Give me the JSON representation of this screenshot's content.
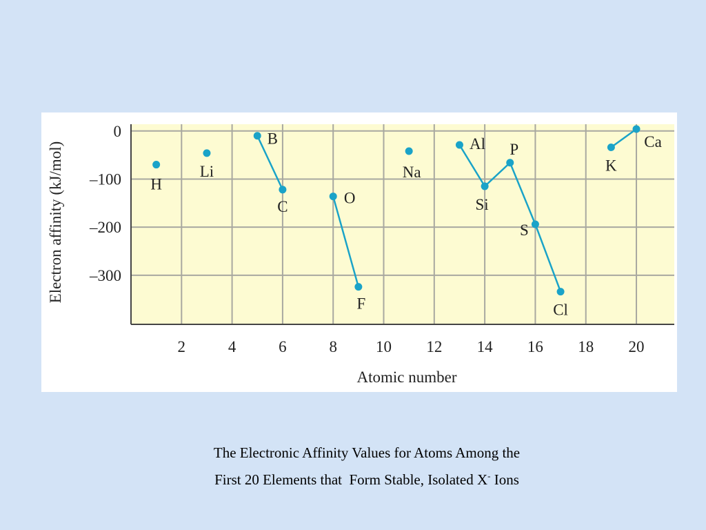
{
  "chart_data": {
    "type": "line",
    "x": [
      1,
      2,
      3,
      4,
      5,
      6,
      7,
      8,
      9,
      10,
      11,
      12,
      13,
      14,
      15,
      16,
      17,
      18,
      19,
      20
    ],
    "series": [
      {
        "color": "#1aa3c8",
        "values": [
          -70,
          null,
          -46,
          null,
          -10,
          -122,
          null,
          -136,
          -324,
          null,
          -42,
          null,
          -29,
          -115,
          -66,
          -194,
          -334,
          null,
          -34,
          4
        ],
        "point_labels": [
          "H",
          null,
          "Li",
          null,
          "B",
          "C",
          null,
          "O",
          "F",
          null,
          "Na",
          null,
          "Al",
          "Si",
          "P",
          "S",
          "Cl",
          null,
          "K",
          "Ca"
        ]
      }
    ],
    "xlabel": "Atomic number",
    "ylabel": "Electron affinity (kJ/mol)",
    "xlim": [
      0,
      21.5
    ],
    "ylim": [
      -402,
      14
    ],
    "xticks": [
      2,
      4,
      6,
      8,
      10,
      12,
      14,
      16,
      18,
      20
    ],
    "yticks": [
      0,
      {
        "value": -100,
        "label": "–100"
      },
      {
        "value": -200,
        "label": "–200"
      },
      {
        "value": -300,
        "label": "–300"
      }
    ],
    "grid": true
  },
  "caption": {
    "line1": "The Electronic Affinity Values for Atoms Among the",
    "line2": "First 20 Elements that  Form Stable, Isolated X",
    "superscript": "-",
    "line2_end": " Ions"
  }
}
